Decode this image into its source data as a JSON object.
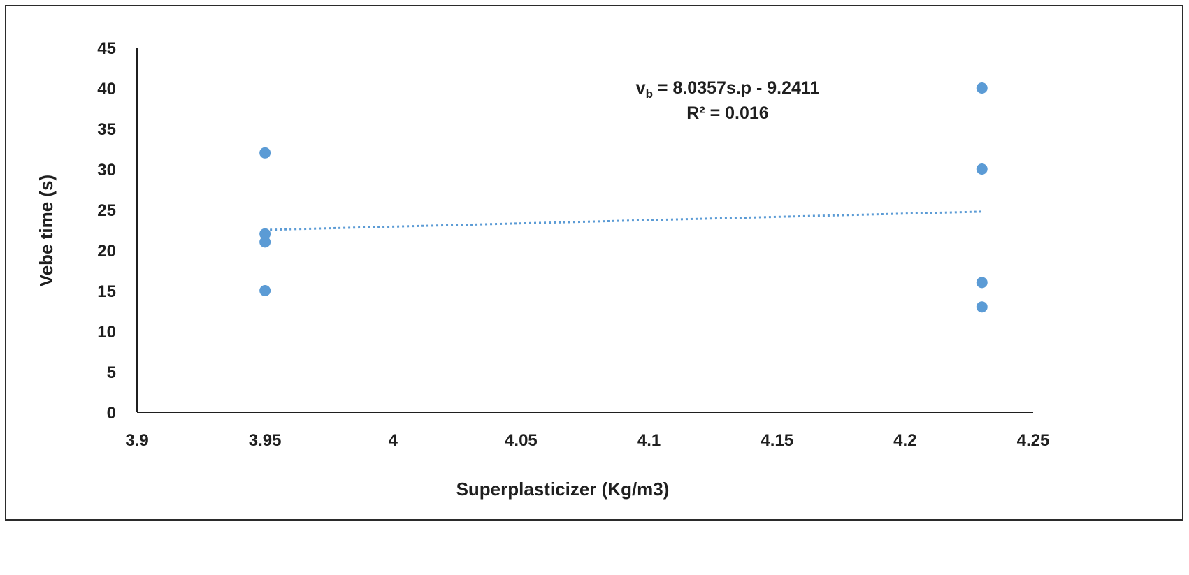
{
  "chart_data": {
    "type": "scatter",
    "title": "",
    "xlabel": "Superplasticizer (Kg/m3)",
    "ylabel": "Vebe time (s)",
    "xlim": [
      3.9,
      4.25
    ],
    "ylim": [
      0,
      45
    ],
    "x_ticks": [
      "3.9",
      "3.95",
      "4",
      "4.05",
      "4.1",
      "4.15",
      "4.2",
      "4.25"
    ],
    "y_ticks": [
      "0",
      "5",
      "10",
      "15",
      "20",
      "25",
      "30",
      "35",
      "40",
      "45"
    ],
    "grid": false,
    "legend": "none",
    "series": [
      {
        "color": "#5b9bd5",
        "points": [
          {
            "x": 3.95,
            "y": 32
          },
          {
            "x": 3.95,
            "y": 22
          },
          {
            "x": 3.95,
            "y": 21
          },
          {
            "x": 3.95,
            "y": 15
          },
          {
            "x": 4.23,
            "y": 40
          },
          {
            "x": 4.23,
            "y": 30
          },
          {
            "x": 4.23,
            "y": 16
          },
          {
            "x": 4.23,
            "y": 13
          }
        ]
      }
    ],
    "trendline": {
      "type": "linear",
      "style": "dotted",
      "color": "#5b9bd5",
      "x_range": [
        3.95,
        4.23
      ],
      "equation_main": "v",
      "equation_sub": "b",
      "equation_rest": " = 8.0357s.p - 9.2411",
      "r_squared": "R² = 0.016"
    }
  }
}
